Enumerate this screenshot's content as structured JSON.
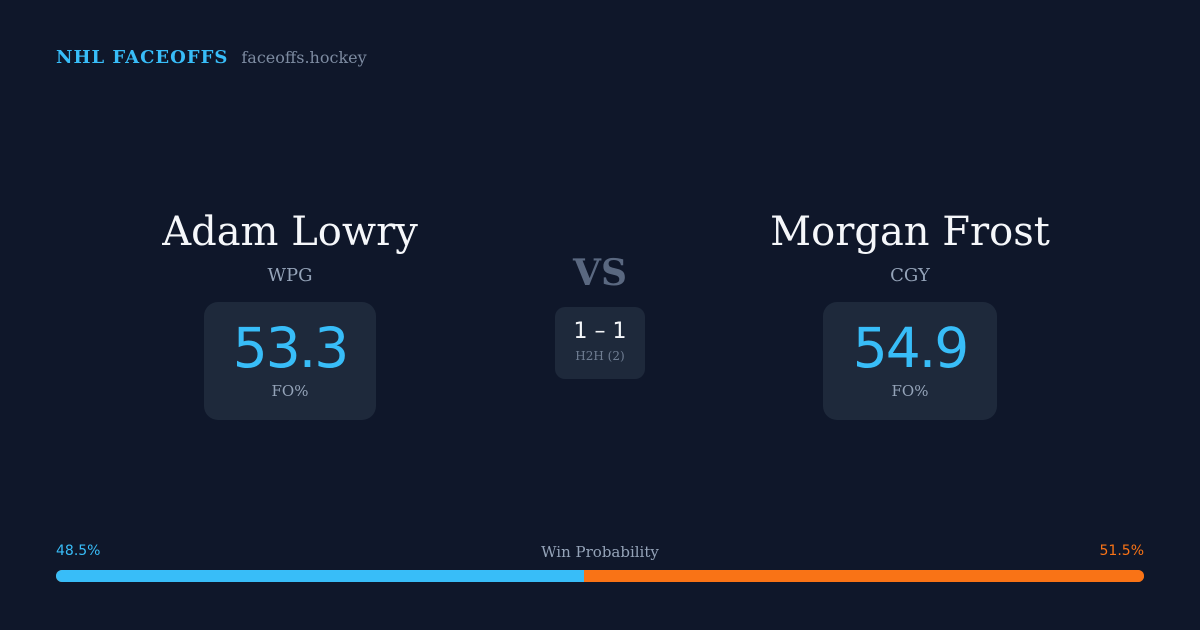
{
  "brand": {
    "name": "NHL FACEOFFS",
    "site": "faceoffs.hockey"
  },
  "players": [
    {
      "name": "Adam Lowry",
      "team": "WPG",
      "fo_value": "53.3",
      "fo_label": "FO%"
    },
    {
      "name": "Morgan Frost",
      "team": "CGY",
      "fo_value": "54.9",
      "fo_label": "FO%"
    }
  ],
  "versus": {
    "label": "VS",
    "h2h_score": "1 – 1",
    "h2h_label": "H2H (2)"
  },
  "win_probability": {
    "title": "Win Probability",
    "left_label": "48.5%",
    "right_label": "51.5%",
    "left_fraction": 0.485,
    "left_color": "#38bdf8",
    "right_color": "#f97316"
  }
}
